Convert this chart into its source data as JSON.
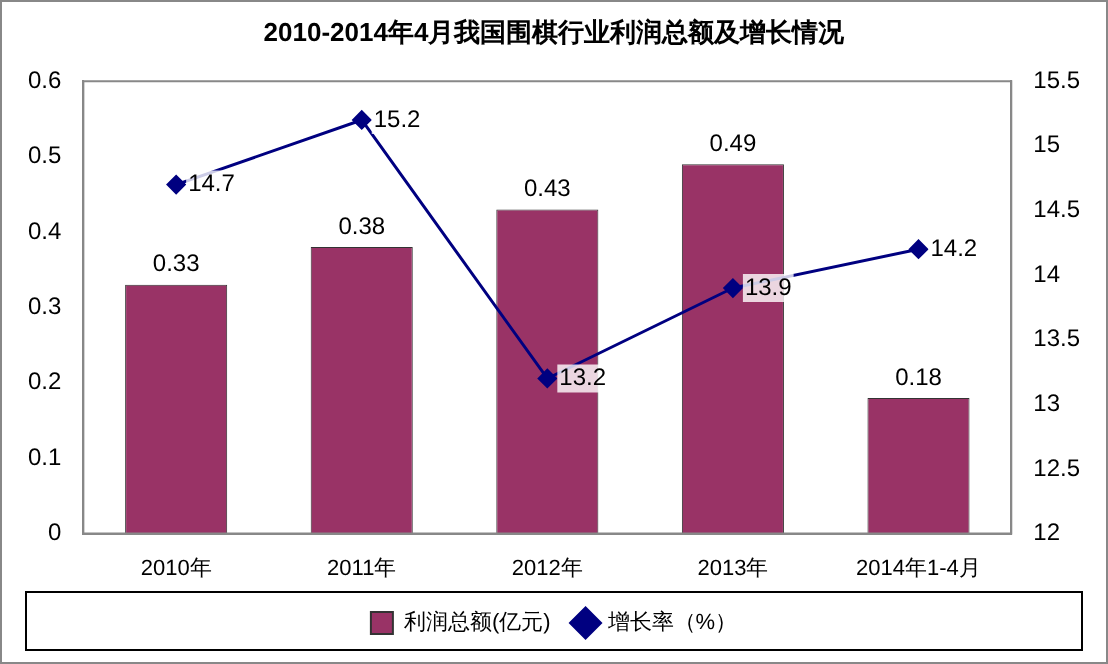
{
  "chart_data": {
    "type": "bar",
    "title": "2010-2014年4月我国围棋行业利润总额及增长情况",
    "categories": [
      "2010年",
      "2011年",
      "2012年",
      "2013年",
      "2014年1-4月"
    ],
    "series": [
      {
        "name": "利润总额(亿元)",
        "color": "#993366",
        "values": [
          0.33,
          0.38,
          0.43,
          0.49,
          0.18
        ]
      },
      {
        "name": "增长率（%）",
        "type": "line",
        "axis": "y2",
        "color": "#000080",
        "values": [
          14.7,
          15.2,
          13.2,
          13.9,
          14.2
        ]
      }
    ],
    "ylim": [
      0,
      0.6
    ],
    "yticks": [
      0,
      0.1,
      0.2,
      0.3,
      0.4,
      0.5,
      0.6
    ],
    "y2lim": [
      12,
      15.5
    ],
    "y2ticks": [
      12,
      12.5,
      13,
      13.5,
      14,
      14.5,
      15,
      15.5
    ],
    "marker": "diamond",
    "line_style": "solid",
    "data_labels": true,
    "grid": false,
    "legend": "bottom"
  }
}
